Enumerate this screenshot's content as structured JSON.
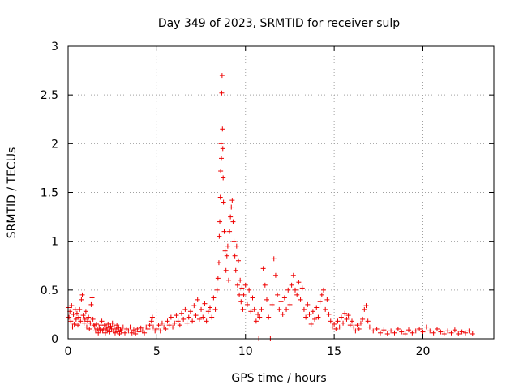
{
  "chart_data": {
    "type": "scatter",
    "title": "Day 349 of 2023, SRMTID for receiver sulp",
    "xlabel": "GPS time / hours",
    "ylabel": "SRMTID / TECUs",
    "xlim": [
      0,
      24
    ],
    "ylim": [
      0,
      3
    ],
    "xticks": [
      0,
      5,
      10,
      15,
      20
    ],
    "xtick_labels": [
      "0",
      "5",
      "10",
      "15",
      "20"
    ],
    "yticks": [
      0,
      0.5,
      1,
      1.5,
      2,
      2.5,
      3
    ],
    "ytick_labels": [
      "0",
      "0.5",
      "1",
      "1.5",
      "2",
      "2.5",
      "3"
    ],
    "grid": true,
    "marker": "plus",
    "color": "#ee0000",
    "series": [
      {
        "name": "sulp",
        "points": [
          [
            0.0,
            0.32
          ],
          [
            0.05,
            0.22
          ],
          [
            0.1,
            0.28
          ],
          [
            0.15,
            0.18
          ],
          [
            0.2,
            0.34
          ],
          [
            0.25,
            0.12
          ],
          [
            0.3,
            0.25
          ],
          [
            0.35,
            0.15
          ],
          [
            0.4,
            0.3
          ],
          [
            0.45,
            0.2
          ],
          [
            0.5,
            0.26
          ],
          [
            0.55,
            0.14
          ],
          [
            0.6,
            0.22
          ],
          [
            0.65,
            0.3
          ],
          [
            0.7,
            0.18
          ],
          [
            0.75,
            0.4
          ],
          [
            0.8,
            0.45
          ],
          [
            0.85,
            0.24
          ],
          [
            0.9,
            0.16
          ],
          [
            0.95,
            0.2
          ],
          [
            1.0,
            0.28
          ],
          [
            1.05,
            0.12
          ],
          [
            1.1,
            0.18
          ],
          [
            1.15,
            0.22
          ],
          [
            1.2,
            0.1
          ],
          [
            1.25,
            0.16
          ],
          [
            1.3,
            0.35
          ],
          [
            1.35,
            0.42
          ],
          [
            1.4,
            0.2
          ],
          [
            1.45,
            0.14
          ],
          [
            1.5,
            0.12
          ],
          [
            1.55,
            0.08
          ],
          [
            1.6,
            0.15
          ],
          [
            1.65,
            0.1
          ],
          [
            1.7,
            0.06
          ],
          [
            1.75,
            0.12
          ],
          [
            1.8,
            0.09
          ],
          [
            1.85,
            0.14
          ],
          [
            1.9,
            0.18
          ],
          [
            1.95,
            0.08
          ],
          [
            2.0,
            0.1
          ],
          [
            2.05,
            0.14
          ],
          [
            2.1,
            0.06
          ],
          [
            2.15,
            0.12
          ],
          [
            2.2,
            0.09
          ],
          [
            2.25,
            0.15
          ],
          [
            2.3,
            0.11
          ],
          [
            2.35,
            0.07
          ],
          [
            2.4,
            0.13
          ],
          [
            2.45,
            0.1
          ],
          [
            2.5,
            0.16
          ],
          [
            2.55,
            0.08
          ],
          [
            2.6,
            0.12
          ],
          [
            2.65,
            0.06
          ],
          [
            2.7,
            0.1
          ],
          [
            2.75,
            0.14
          ],
          [
            2.8,
            0.07
          ],
          [
            2.85,
            0.11
          ],
          [
            2.9,
            0.05
          ],
          [
            2.95,
            0.09
          ],
          [
            3.0,
            0.08
          ],
          [
            3.1,
            0.12
          ],
          [
            3.2,
            0.06
          ],
          [
            3.3,
            0.1
          ],
          [
            3.4,
            0.08
          ],
          [
            3.5,
            0.12
          ],
          [
            3.6,
            0.06
          ],
          [
            3.7,
            0.09
          ],
          [
            3.8,
            0.05
          ],
          [
            3.9,
            0.1
          ],
          [
            4.0,
            0.07
          ],
          [
            4.1,
            0.11
          ],
          [
            4.2,
            0.08
          ],
          [
            4.3,
            0.06
          ],
          [
            4.4,
            0.12
          ],
          [
            4.5,
            0.1
          ],
          [
            4.6,
            0.14
          ],
          [
            4.7,
            0.18
          ],
          [
            4.75,
            0.22
          ],
          [
            4.8,
            0.12
          ],
          [
            4.9,
            0.08
          ],
          [
            5.0,
            0.1
          ],
          [
            5.1,
            0.14
          ],
          [
            5.2,
            0.08
          ],
          [
            5.3,
            0.16
          ],
          [
            5.4,
            0.12
          ],
          [
            5.5,
            0.1
          ],
          [
            5.6,
            0.18
          ],
          [
            5.7,
            0.14
          ],
          [
            5.8,
            0.22
          ],
          [
            5.9,
            0.12
          ],
          [
            6.0,
            0.16
          ],
          [
            6.1,
            0.24
          ],
          [
            6.2,
            0.18
          ],
          [
            6.3,
            0.14
          ],
          [
            6.4,
            0.26
          ],
          [
            6.5,
            0.2
          ],
          [
            6.6,
            0.3
          ],
          [
            6.7,
            0.16
          ],
          [
            6.8,
            0.22
          ],
          [
            6.9,
            0.28
          ],
          [
            7.0,
            0.18
          ],
          [
            7.1,
            0.34
          ],
          [
            7.2,
            0.24
          ],
          [
            7.3,
            0.4
          ],
          [
            7.4,
            0.2
          ],
          [
            7.5,
            0.3
          ],
          [
            7.6,
            0.22
          ],
          [
            7.7,
            0.36
          ],
          [
            7.8,
            0.18
          ],
          [
            7.9,
            0.28
          ],
          [
            8.0,
            0.32
          ],
          [
            8.1,
            0.22
          ],
          [
            8.2,
            0.42
          ],
          [
            8.3,
            0.3
          ],
          [
            8.4,
            0.5
          ],
          [
            8.45,
            0.62
          ],
          [
            8.5,
            0.78
          ],
          [
            8.52,
            1.05
          ],
          [
            8.55,
            1.2
          ],
          [
            8.58,
            1.45
          ],
          [
            8.6,
            1.72
          ],
          [
            8.62,
            2.0
          ],
          [
            8.64,
            1.85
          ],
          [
            8.66,
            2.52
          ],
          [
            8.68,
            2.7
          ],
          [
            8.7,
            2.15
          ],
          [
            8.72,
            1.95
          ],
          [
            8.74,
            1.65
          ],
          [
            8.76,
            1.4
          ],
          [
            8.8,
            1.1
          ],
          [
            8.85,
            0.9
          ],
          [
            8.9,
            0.7
          ],
          [
            8.95,
            0.85
          ],
          [
            9.0,
            0.95
          ],
          [
            9.05,
            0.6
          ],
          [
            9.1,
            1.1
          ],
          [
            9.15,
            1.25
          ],
          [
            9.2,
            1.35
          ],
          [
            9.25,
            1.42
          ],
          [
            9.3,
            1.2
          ],
          [
            9.35,
            1.0
          ],
          [
            9.4,
            0.85
          ],
          [
            9.45,
            0.7
          ],
          [
            9.5,
            0.95
          ],
          [
            9.55,
            0.55
          ],
          [
            9.6,
            0.8
          ],
          [
            9.65,
            0.45
          ],
          [
            9.7,
            0.6
          ],
          [
            9.75,
            0.38
          ],
          [
            9.8,
            0.52
          ],
          [
            9.85,
            0.3
          ],
          [
            9.9,
            0.45
          ],
          [
            10.0,
            0.55
          ],
          [
            10.1,
            0.35
          ],
          [
            10.2,
            0.5
          ],
          [
            10.3,
            0.28
          ],
          [
            10.4,
            0.42
          ],
          [
            10.5,
            0.3
          ],
          [
            10.6,
            0.18
          ],
          [
            10.7,
            0.25
          ],
          [
            10.75,
            0.0
          ],
          [
            10.8,
            0.22
          ],
          [
            10.9,
            0.3
          ],
          [
            11.0,
            0.72
          ],
          [
            11.1,
            0.55
          ],
          [
            11.2,
            0.4
          ],
          [
            11.3,
            0.22
          ],
          [
            11.4,
            0.0
          ],
          [
            11.5,
            0.35
          ],
          [
            11.6,
            0.82
          ],
          [
            11.7,
            0.65
          ],
          [
            11.8,
            0.45
          ],
          [
            11.9,
            0.3
          ],
          [
            12.0,
            0.38
          ],
          [
            12.1,
            0.25
          ],
          [
            12.2,
            0.42
          ],
          [
            12.3,
            0.3
          ],
          [
            12.4,
            0.5
          ],
          [
            12.5,
            0.35
          ],
          [
            12.6,
            0.55
          ],
          [
            12.7,
            0.65
          ],
          [
            12.8,
            0.5
          ],
          [
            12.9,
            0.45
          ],
          [
            13.0,
            0.58
          ],
          [
            13.1,
            0.4
          ],
          [
            13.2,
            0.52
          ],
          [
            13.3,
            0.3
          ],
          [
            13.4,
            0.22
          ],
          [
            13.5,
            0.35
          ],
          [
            13.6,
            0.25
          ],
          [
            13.7,
            0.15
          ],
          [
            13.8,
            0.28
          ],
          [
            13.9,
            0.2
          ],
          [
            14.0,
            0.32
          ],
          [
            14.1,
            0.22
          ],
          [
            14.2,
            0.38
          ],
          [
            14.3,
            0.45
          ],
          [
            14.4,
            0.5
          ],
          [
            14.5,
            0.3
          ],
          [
            14.6,
            0.4
          ],
          [
            14.7,
            0.25
          ],
          [
            14.8,
            0.18
          ],
          [
            14.9,
            0.12
          ],
          [
            15.0,
            0.15
          ],
          [
            15.1,
            0.1
          ],
          [
            15.2,
            0.18
          ],
          [
            15.3,
            0.12
          ],
          [
            15.4,
            0.22
          ],
          [
            15.5,
            0.16
          ],
          [
            15.6,
            0.26
          ],
          [
            15.7,
            0.2
          ],
          [
            15.8,
            0.24
          ],
          [
            15.9,
            0.14
          ],
          [
            16.0,
            0.18
          ],
          [
            16.1,
            0.12
          ],
          [
            16.2,
            0.08
          ],
          [
            16.3,
            0.14
          ],
          [
            16.4,
            0.1
          ],
          [
            16.5,
            0.16
          ],
          [
            16.6,
            0.2
          ],
          [
            16.7,
            0.3
          ],
          [
            16.8,
            0.34
          ],
          [
            16.9,
            0.18
          ],
          [
            17.0,
            0.12
          ],
          [
            17.2,
            0.08
          ],
          [
            17.4,
            0.1
          ],
          [
            17.6,
            0.06
          ],
          [
            17.8,
            0.09
          ],
          [
            18.0,
            0.05
          ],
          [
            18.2,
            0.08
          ],
          [
            18.4,
            0.06
          ],
          [
            18.6,
            0.1
          ],
          [
            18.8,
            0.07
          ],
          [
            19.0,
            0.05
          ],
          [
            19.2,
            0.09
          ],
          [
            19.4,
            0.06
          ],
          [
            19.6,
            0.08
          ],
          [
            19.8,
            0.1
          ],
          [
            20.0,
            0.07
          ],
          [
            20.2,
            0.12
          ],
          [
            20.4,
            0.08
          ],
          [
            20.6,
            0.06
          ],
          [
            20.8,
            0.1
          ],
          [
            21.0,
            0.07
          ],
          [
            21.2,
            0.05
          ],
          [
            21.4,
            0.08
          ],
          [
            21.6,
            0.06
          ],
          [
            21.8,
            0.09
          ],
          [
            22.0,
            0.05
          ],
          [
            22.2,
            0.07
          ],
          [
            22.4,
            0.06
          ],
          [
            22.6,
            0.08
          ],
          [
            22.8,
            0.05
          ]
        ]
      }
    ]
  }
}
